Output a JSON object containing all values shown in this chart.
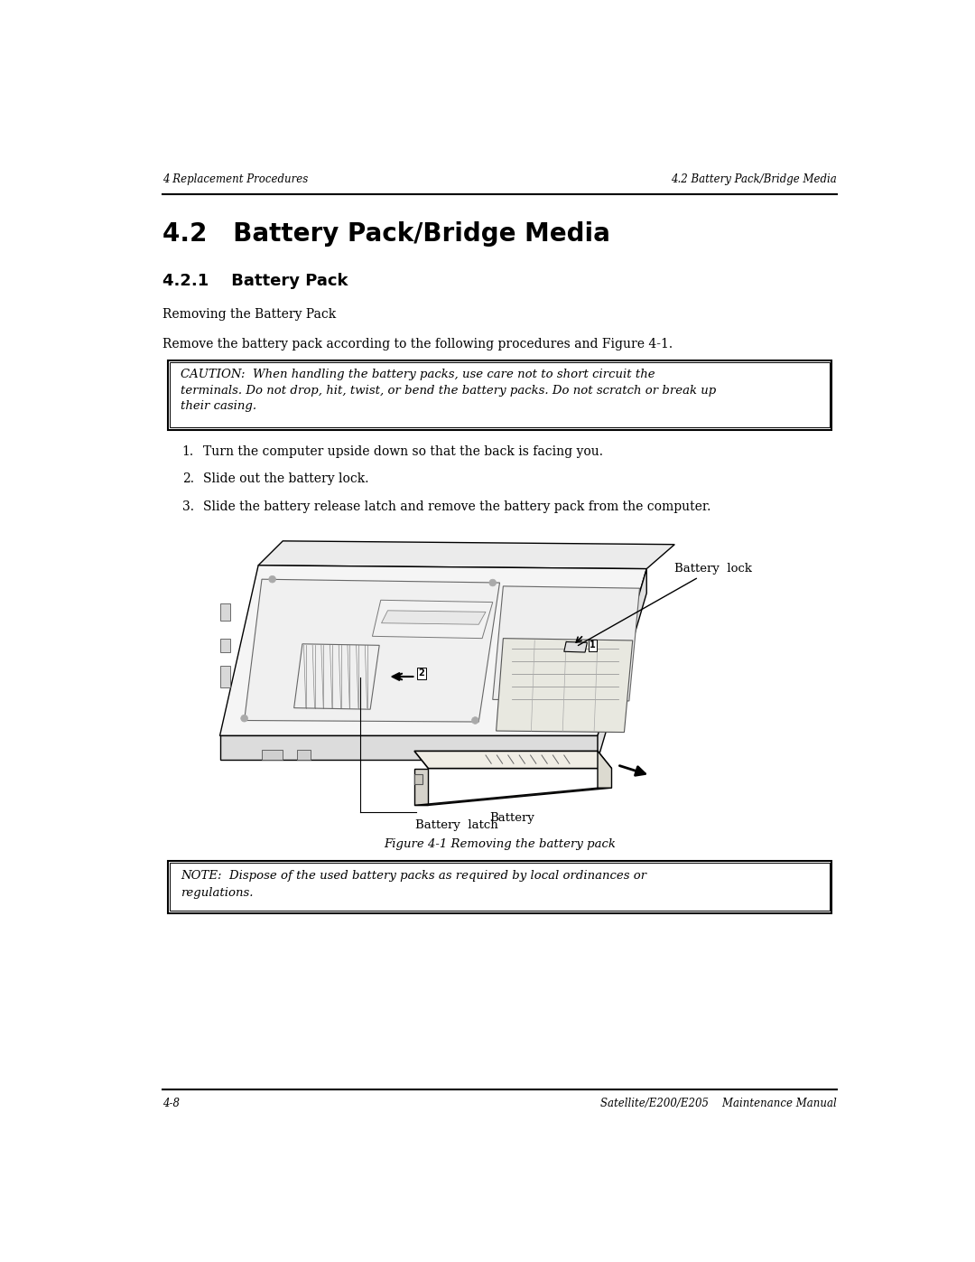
{
  "page_width": 10.8,
  "page_height": 13.97,
  "bg_color": "#ffffff",
  "header_left": "4 Replacement Procedures",
  "header_right": "4.2 Battery Pack/Bridge Media",
  "footer_left": "4-8",
  "footer_right": "Satellite/E200/E205    Maintenance Manual",
  "title_h2": "4.2   Battery Pack/Bridge Media",
  "title_h3": "4.2.1    Battery Pack",
  "subtitle": "Removing the Battery Pack",
  "intro_text": "Remove the battery pack according to the following procedures and Figure 4-1.",
  "caution_line1": "CAUTION:  When handling the battery packs, use care not to short circuit the",
  "caution_line2": "terminals. Do not drop, hit, twist, or bend the battery packs. Do not scratch or break up",
  "caution_line3": "their casing.",
  "step1": "Turn the computer upside down so that the back is facing you.",
  "step2": "Slide out the battery lock.",
  "step3": "Slide the battery release latch and remove the battery pack from the computer.",
  "figure_caption": "Figure 4-1 Removing the battery pack",
  "note_line1": "NOTE:  Dispose of the used battery packs as required by local ordinances or",
  "note_line2": "regulations.",
  "label_battery_lock": "Battery  lock",
  "label_battery_latch": "Battery  latch",
  "label_battery": "Battery"
}
